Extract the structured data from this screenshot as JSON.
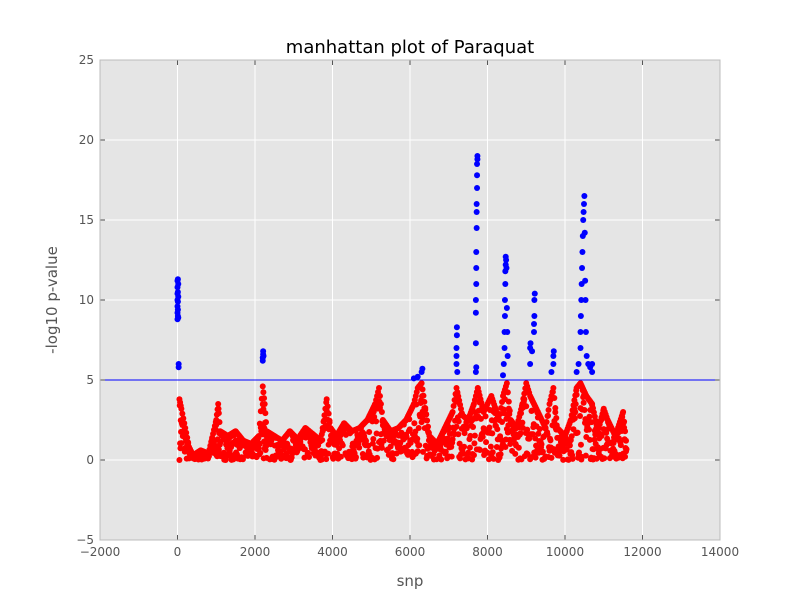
{
  "chart_data": {
    "type": "scatter",
    "title": "manhattan plot of Paraquat",
    "xlabel": "snp",
    "ylabel": "-log10 p-value",
    "xlim": [
      -2000,
      14000
    ],
    "ylim": [
      -5,
      25
    ],
    "xticks": [
      -2000,
      0,
      2000,
      4000,
      6000,
      8000,
      10000,
      12000,
      14000
    ],
    "yticks": [
      -5,
      0,
      5,
      10,
      15,
      20,
      25
    ],
    "xtick_labels": [
      "−2000",
      "0",
      "2000",
      "4000",
      "6000",
      "8000",
      "10000",
      "12000",
      "14000"
    ],
    "ytick_labels": [
      "−5",
      "0",
      "5",
      "10",
      "15",
      "20",
      "25"
    ],
    "grid": true,
    "background": "#e5e5e5",
    "threshold": {
      "y": 5,
      "color": "#0000ff"
    },
    "colors": {
      "below_threshold": "#ff0000",
      "above_threshold": "#0000ff"
    },
    "series": [
      {
        "color": "#0000ff",
        "points": [
          [
            0,
            8.8
          ],
          [
            0,
            9.2
          ],
          [
            0,
            9.6
          ],
          [
            0,
            10.0
          ],
          [
            0,
            10.4
          ],
          [
            0,
            10.8
          ],
          [
            0,
            11.2
          ],
          [
            10,
            9.0
          ],
          [
            10,
            9.4
          ],
          [
            10,
            9.9
          ],
          [
            10,
            10.5
          ],
          [
            10,
            11.3
          ],
          [
            20,
            8.9
          ],
          [
            20,
            10.2
          ],
          [
            20,
            11.0
          ],
          [
            30,
            5.8
          ],
          [
            30,
            6.0
          ],
          [
            2200,
            6.2
          ],
          [
            2200,
            6.4
          ],
          [
            2210,
            6.6
          ],
          [
            2210,
            6.8
          ],
          [
            2220,
            6.5
          ],
          [
            6100,
            5.1
          ],
          [
            6200,
            5.2
          ],
          [
            6300,
            5.5
          ],
          [
            6320,
            5.7
          ],
          [
            7200,
            6.0
          ],
          [
            7200,
            6.5
          ],
          [
            7200,
            7.0
          ],
          [
            7210,
            7.8
          ],
          [
            7210,
            8.3
          ],
          [
            7220,
            5.5
          ],
          [
            7700,
            7.3
          ],
          [
            7700,
            9.2
          ],
          [
            7700,
            10.0
          ],
          [
            7710,
            11.0
          ],
          [
            7710,
            12.0
          ],
          [
            7710,
            13.0
          ],
          [
            7720,
            14.5
          ],
          [
            7720,
            15.5
          ],
          [
            7720,
            16.0
          ],
          [
            7730,
            17.0
          ],
          [
            7730,
            17.8
          ],
          [
            7730,
            18.5
          ],
          [
            7740,
            19.0
          ],
          [
            7740,
            18.8
          ],
          [
            7700,
            5.5
          ],
          [
            7710,
            5.8
          ],
          [
            8400,
            5.3
          ],
          [
            8420,
            6.0
          ],
          [
            8440,
            7.0
          ],
          [
            8440,
            8.0
          ],
          [
            8450,
            9.0
          ],
          [
            8450,
            10.0
          ],
          [
            8460,
            11.0
          ],
          [
            8460,
            11.8
          ],
          [
            8470,
            12.2
          ],
          [
            8470,
            12.7
          ],
          [
            8480,
            12.5
          ],
          [
            8490,
            12.0
          ],
          [
            8500,
            9.5
          ],
          [
            8510,
            8.0
          ],
          [
            8520,
            6.5
          ],
          [
            9100,
            6.0
          ],
          [
            9100,
            7.0
          ],
          [
            9110,
            7.3
          ],
          [
            9150,
            6.8
          ],
          [
            9200,
            8.0
          ],
          [
            9200,
            8.5
          ],
          [
            9210,
            9.0
          ],
          [
            9210,
            10.0
          ],
          [
            9220,
            10.4
          ],
          [
            9650,
            5.5
          ],
          [
            9700,
            6.0
          ],
          [
            9700,
            6.5
          ],
          [
            9710,
            6.8
          ],
          [
            10300,
            5.5
          ],
          [
            10350,
            6.0
          ],
          [
            10400,
            7.0
          ],
          [
            10400,
            8.0
          ],
          [
            10410,
            9.0
          ],
          [
            10420,
            10.0
          ],
          [
            10430,
            11.0
          ],
          [
            10440,
            12.0
          ],
          [
            10450,
            13.0
          ],
          [
            10460,
            14.0
          ],
          [
            10470,
            15.0
          ],
          [
            10480,
            15.5
          ],
          [
            10490,
            16.0
          ],
          [
            10500,
            16.5
          ],
          [
            10510,
            14.2
          ],
          [
            10520,
            11.2
          ],
          [
            10530,
            10.0
          ],
          [
            10540,
            8.0
          ],
          [
            10560,
            6.5
          ],
          [
            10600,
            6.0
          ],
          [
            10650,
            5.8
          ],
          [
            10700,
            6.0
          ],
          [
            10700,
            5.5
          ]
        ]
      },
      {
        "color": "#ff0000",
        "segments": [
          [
            50,
            3.8
          ],
          [
            100,
            3.2
          ],
          [
            200,
            2.0
          ],
          [
            300,
            0.8
          ],
          [
            400,
            0.3
          ],
          [
            600,
            0.6
          ],
          [
            800,
            0.4
          ],
          [
            1000,
            2.5
          ],
          [
            1050,
            3.5
          ],
          [
            1100,
            1.8
          ],
          [
            1300,
            1.5
          ],
          [
            1500,
            1.8
          ],
          [
            1700,
            1.2
          ],
          [
            1900,
            1.0
          ],
          [
            2100,
            1.5
          ],
          [
            2200,
            4.6
          ],
          [
            2250,
            3.5
          ],
          [
            2300,
            1.8
          ],
          [
            2500,
            1.5
          ],
          [
            2700,
            1.2
          ],
          [
            2900,
            1.8
          ],
          [
            3100,
            1.3
          ],
          [
            3300,
            2.0
          ],
          [
            3500,
            1.6
          ],
          [
            3700,
            1.2
          ],
          [
            3850,
            3.8
          ],
          [
            3950,
            2.0
          ],
          [
            4100,
            1.5
          ],
          [
            4300,
            2.3
          ],
          [
            4500,
            1.8
          ],
          [
            4700,
            2.0
          ],
          [
            4900,
            2.5
          ],
          [
            5100,
            3.5
          ],
          [
            5200,
            4.5
          ],
          [
            5300,
            2.5
          ],
          [
            5500,
            1.8
          ],
          [
            5700,
            2.0
          ],
          [
            5900,
            2.5
          ],
          [
            6100,
            3.5
          ],
          [
            6200,
            4.5
          ],
          [
            6300,
            4.8
          ],
          [
            6500,
            1.5
          ],
          [
            6700,
            1.0
          ],
          [
            6900,
            2.0
          ],
          [
            7100,
            3.0
          ],
          [
            7200,
            4.5
          ],
          [
            7350,
            2.8
          ],
          [
            7500,
            2.5
          ],
          [
            7650,
            3.5
          ],
          [
            7750,
            4.5
          ],
          [
            7900,
            3.0
          ],
          [
            8000,
            3.5
          ],
          [
            8100,
            4.0
          ],
          [
            8300,
            2.5
          ],
          [
            8400,
            4.0
          ],
          [
            8500,
            4.8
          ],
          [
            8600,
            2.5
          ],
          [
            8750,
            2.0
          ],
          [
            8900,
            3.5
          ],
          [
            9000,
            4.8
          ],
          [
            9100,
            4.0
          ],
          [
            9300,
            3.0
          ],
          [
            9500,
            2.0
          ],
          [
            9600,
            3.5
          ],
          [
            9700,
            4.5
          ],
          [
            9800,
            2.0
          ],
          [
            10000,
            1.5
          ],
          [
            10150,
            2.5
          ],
          [
            10300,
            4.5
          ],
          [
            10400,
            4.8
          ],
          [
            10550,
            4.0
          ],
          [
            10700,
            3.5
          ],
          [
            10850,
            1.8
          ],
          [
            11000,
            3.2
          ],
          [
            11100,
            2.5
          ],
          [
            11300,
            1.5
          ],
          [
            11500,
            3.0
          ],
          [
            11600,
            0.6
          ]
        ]
      }
    ]
  }
}
